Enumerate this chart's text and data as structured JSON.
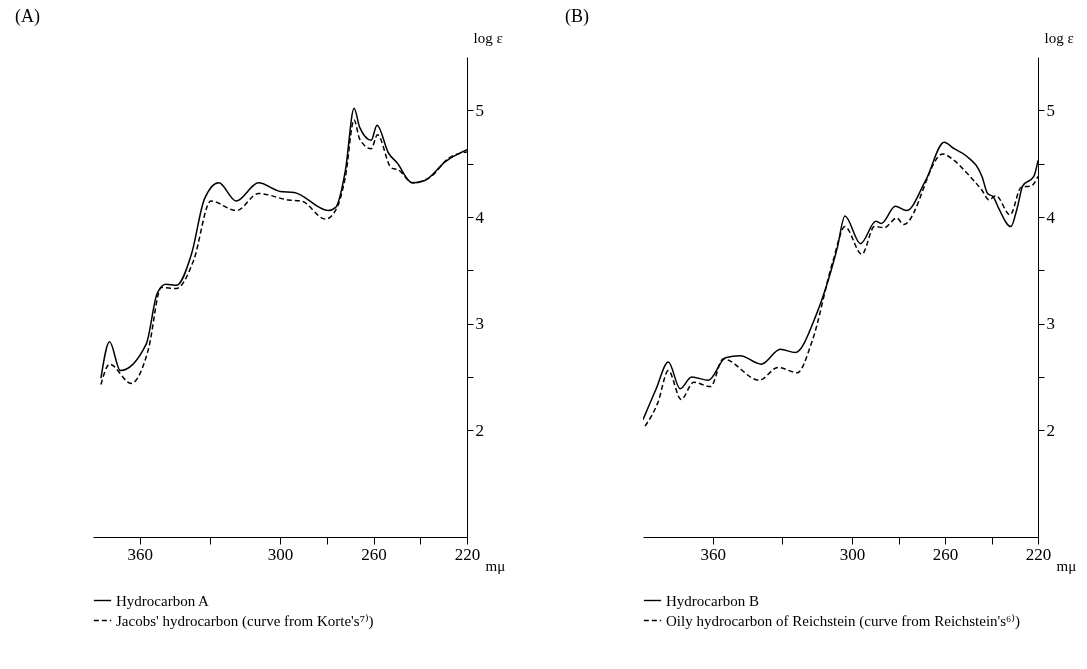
{
  "chart_data": [
    {
      "type": "line",
      "title": "(A)",
      "xlabel": "mμ",
      "ylabel": "log ε",
      "xlim": [
        380,
        220
      ],
      "ylim": [
        1,
        5.5
      ],
      "xticks": [
        360,
        {
          "value": 330,
          "label": null
        },
        300,
        {
          "value": 280,
          "label": null
        },
        260,
        {
          "value": 240,
          "label": null
        },
        220
      ],
      "yticks": [
        2,
        {
          "value": 2.5,
          "label": null
        },
        3,
        {
          "value": 3.5,
          "label": null
        },
        4,
        {
          "value": 4.5,
          "label": null
        },
        5
      ],
      "grid": false,
      "marker": "none",
      "legend": "bottom",
      "series": [
        {
          "name": "Hydrocarbon A",
          "color": "#000000",
          "line_style": "solid",
          "x": [
            376.6,
            372.9,
            368.3,
            357.2,
            352.6,
            348.9,
            344.3,
            337.9,
            332.3,
            326.2,
            318.8,
            309.2,
            300,
            293.9,
            279.3,
            276.2,
            272.0,
            268.3,
            265.9,
            261.0,
            258.5,
            253.6,
            250.0,
            243.4,
            238.3,
            229.2,
            220
          ],
          "values": [
            2.49,
            2.83,
            2.56,
            2.81,
            3.28,
            3.37,
            3.36,
            3.65,
            4.17,
            4.32,
            4.15,
            4.32,
            4.24,
            4.23,
            4.06,
            4.09,
            4.44,
            5.02,
            4.84,
            4.72,
            4.86,
            4.6,
            4.51,
            4.32,
            4.34,
            4.52,
            4.63
          ]
        },
        {
          "name": "Jacobs' hydrocarbon (curve from Korte's⁷⁾)",
          "color": "#000000",
          "line_style": "dashed",
          "x": [
            376.6,
            372.9,
            363.7,
            356.3,
            350.8,
            344.3,
            337.0,
            329.6,
            318.6,
            309.2,
            296.3,
            290.9,
            280.5,
            275.6,
            272.0,
            268.3,
            265.9,
            261.0,
            258.3,
            252.4,
            249.3,
            243.4,
            235.3,
            228.0,
            220
          ],
          "values": [
            2.43,
            2.62,
            2.44,
            2.76,
            3.34,
            3.33,
            3.59,
            4.15,
            4.06,
            4.22,
            4.16,
            4.15,
            3.98,
            4.09,
            4.38,
            4.91,
            4.73,
            4.64,
            4.77,
            4.46,
            4.44,
            4.32,
            4.38,
            4.55,
            4.61
          ]
        }
      ]
    },
    {
      "type": "line",
      "title": "(B)",
      "xlabel": "mμ",
      "ylabel": "log ε",
      "xlim": [
        390,
        220
      ],
      "ylim": [
        1,
        5.5
      ],
      "xticks": [
        360,
        {
          "value": 330,
          "label": null
        },
        300,
        {
          "value": 280,
          "label": null
        },
        260,
        {
          "value": 240,
          "label": null
        },
        220
      ],
      "yticks": [
        2,
        {
          "value": 2.5,
          "label": null
        },
        3,
        {
          "value": 3.5,
          "label": null
        },
        4,
        {
          "value": 4.5,
          "label": null
        },
        5
      ],
      "grid": false,
      "marker": "none",
      "legend": "bottom",
      "series": [
        {
          "name": "Hydrocarbon B",
          "color": "#000000",
          "line_style": "solid",
          "x": [
            390.0,
            384.5,
            379.1,
            374.0,
            369.1,
            361.8,
            354.5,
            348.2,
            339.1,
            330.9,
            324.5,
            315.5,
            306.4,
            303.1,
            296.4,
            289.8,
            287.4,
            281.4,
            276.6,
            268.2,
            260.4,
            256.1,
            250.7,
            244.1,
            241.7,
            239.3,
            236.9,
            231.7,
            229.0,
            226.6,
            221.8,
            220.0
          ],
          "values": [
            2.1,
            2.38,
            2.64,
            2.39,
            2.5,
            2.47,
            2.68,
            2.7,
            2.62,
            2.76,
            2.73,
            3.08,
            3.71,
            4.01,
            3.75,
            3.96,
            3.94,
            4.1,
            4.06,
            4.35,
            4.7,
            4.64,
            4.57,
            4.38,
            4.22,
            4.19,
            4.08,
            3.91,
            4.08,
            4.29,
            4.38,
            4.53
          ]
        },
        {
          "name": "Oily hydrocarbon of Reichstein (curve from Reichstein's⁶⁾)",
          "color": "#000000",
          "line_style": "dashed",
          "x": [
            389.1,
            383.6,
            379.1,
            373.6,
            368.2,
            360.9,
            355.5,
            340.0,
            331.8,
            323.6,
            317.3,
            308.2,
            303.1,
            295.8,
            290.4,
            286.2,
            280.8,
            277.8,
            261.0,
            256.1,
            250.1,
            244.1,
            241.1,
            238.1,
            232.0,
            227.2,
            223.0,
            220.0
          ],
          "values": [
            2.04,
            2.26,
            2.56,
            2.29,
            2.45,
            2.41,
            2.67,
            2.47,
            2.59,
            2.54,
            2.83,
            3.59,
            3.91,
            3.65,
            3.91,
            3.9,
            3.99,
            3.93,
            4.59,
            4.53,
            4.4,
            4.25,
            4.16,
            4.2,
            4.02,
            4.28,
            4.29,
            4.38
          ]
        }
      ]
    }
  ]
}
